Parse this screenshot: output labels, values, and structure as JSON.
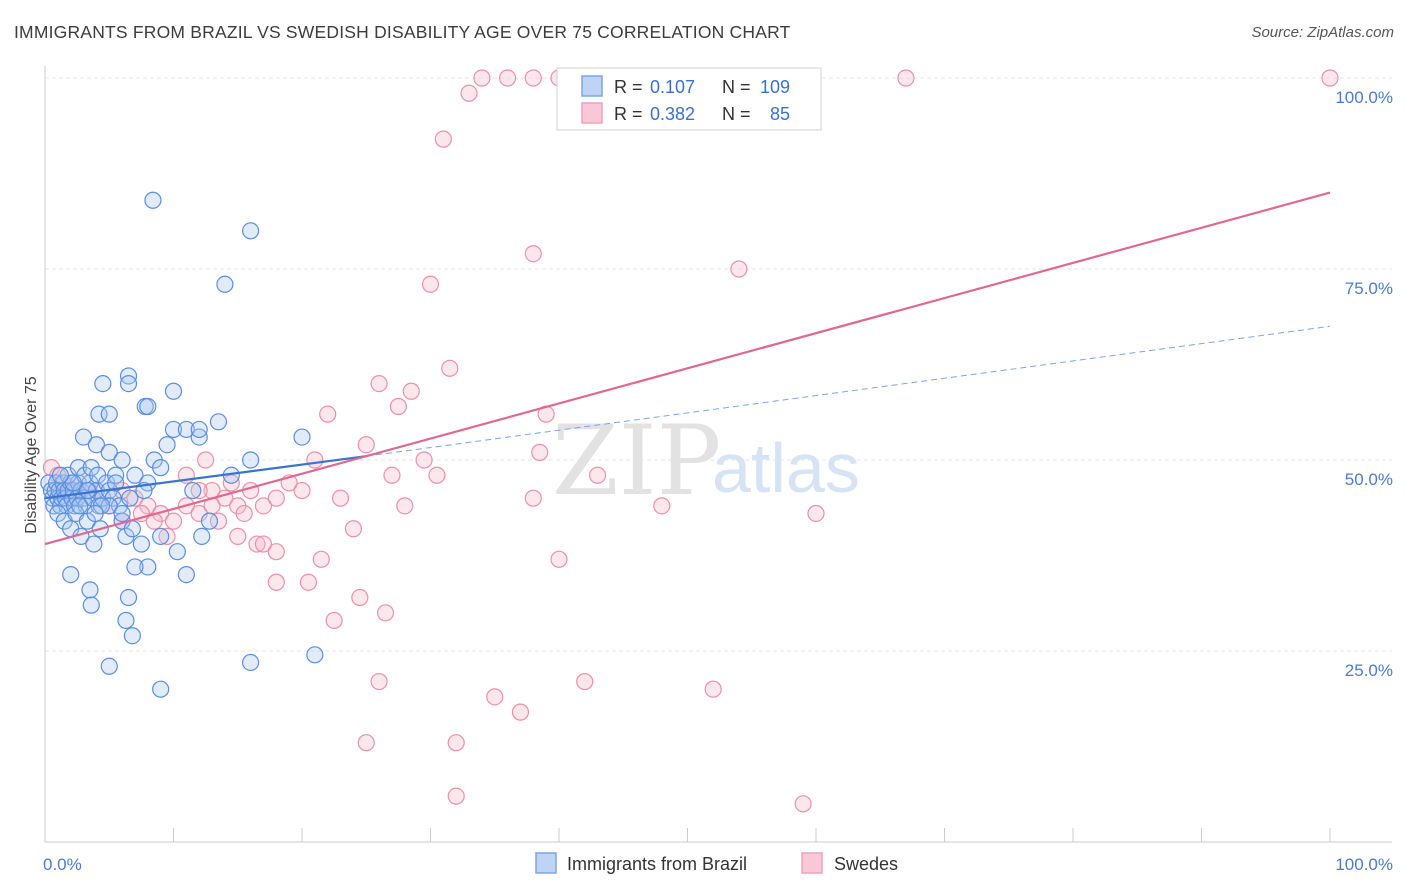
{
  "title": "IMMIGRANTS FROM BRAZIL VS SWEDISH DISABILITY AGE OVER 75 CORRELATION CHART",
  "source": "Source: ZipAtlas.com",
  "watermark": {
    "zip": "ZIP",
    "atlas": "atlas"
  },
  "legend": {
    "rows": [
      {
        "r_label": "R =",
        "r_value": "0.107",
        "n_label": "N =",
        "n_value": "109",
        "color": "#6f9fe3"
      },
      {
        "r_label": "R =",
        "r_value": "0.382",
        "n_label": "N =",
        "n_value": "85",
        "color": "#ec8fab"
      }
    ]
  },
  "bottom_legend": [
    {
      "label": "Immigrants from Brazil",
      "color": "#6f9fe3"
    },
    {
      "label": "Swedes",
      "color": "#ec8fab"
    }
  ],
  "chart_data": {
    "type": "scatter",
    "xlabel": "",
    "ylabel": "Disability Age Over 75",
    "xlim": [
      0,
      100
    ],
    "ylim": [
      0,
      100
    ],
    "x_tick_labels": [
      "0.0%",
      "100.0%"
    ],
    "y_tick_labels": [
      {
        "value": 25,
        "label": "25.0%"
      },
      {
        "value": 50,
        "label": "50.0%"
      },
      {
        "value": 75,
        "label": "75.0%"
      },
      {
        "value": 100,
        "label": "100.0%"
      }
    ],
    "series": [
      {
        "name": "Immigrants from Brazil",
        "color": "#6f9fe3",
        "trend": {
          "x0": 0,
          "y0": 45,
          "x1": 25,
          "y1": 50.5,
          "dash_x1": 100,
          "dash_y1": 67.5
        },
        "points": [
          [
            0.3,
            47
          ],
          [
            0.5,
            46
          ],
          [
            0.6,
            45
          ],
          [
            0.7,
            44
          ],
          [
            0.8,
            46
          ],
          [
            0.9,
            47
          ],
          [
            1.0,
            45
          ],
          [
            1.1,
            46
          ],
          [
            1.2,
            44
          ],
          [
            1.3,
            45
          ],
          [
            1.4,
            47
          ],
          [
            1.5,
            46
          ],
          [
            1.6,
            45
          ],
          [
            1.7,
            44
          ],
          [
            1.8,
            46
          ],
          [
            2.0,
            47
          ],
          [
            2.1,
            45
          ],
          [
            2.2,
            46
          ],
          [
            2.3,
            44
          ],
          [
            2.5,
            45
          ],
          [
            2.6,
            47
          ],
          [
            2.8,
            46
          ],
          [
            3.0,
            45
          ],
          [
            3.2,
            44
          ],
          [
            3.4,
            46
          ],
          [
            3.5,
            47
          ],
          [
            3.7,
            45
          ],
          [
            4.0,
            46
          ],
          [
            4.2,
            44
          ],
          [
            4.5,
            45
          ],
          [
            1.0,
            43
          ],
          [
            1.5,
            42
          ],
          [
            2.0,
            41
          ],
          [
            2.4,
            43
          ],
          [
            2.8,
            40
          ],
          [
            3.3,
            42
          ],
          [
            3.8,
            39
          ],
          [
            4.3,
            41
          ],
          [
            1.8,
            48
          ],
          [
            2.6,
            49
          ],
          [
            3.1,
            48
          ],
          [
            3.6,
            49
          ],
          [
            4.1,
            48
          ],
          [
            4.8,
            47
          ],
          [
            5.0,
            46
          ],
          [
            5.3,
            45
          ],
          [
            5.5,
            48
          ],
          [
            5.8,
            44
          ],
          [
            6.0,
            42
          ],
          [
            6.3,
            40
          ],
          [
            3.0,
            53
          ],
          [
            4.0,
            52
          ],
          [
            5.0,
            51
          ],
          [
            6.0,
            50
          ],
          [
            7.0,
            48
          ],
          [
            8.0,
            47
          ],
          [
            8.5,
            50
          ],
          [
            9.0,
            49
          ],
          [
            9.5,
            52
          ],
          [
            10.0,
            54
          ],
          [
            4.2,
            56
          ],
          [
            5.0,
            56
          ],
          [
            6.5,
            61
          ],
          [
            7.8,
            57
          ],
          [
            10.0,
            59
          ],
          [
            11.0,
            54
          ],
          [
            12.0,
            53
          ],
          [
            13.5,
            55
          ],
          [
            14.5,
            48
          ],
          [
            16.0,
            50
          ],
          [
            5.0,
            44
          ],
          [
            6.0,
            43
          ],
          [
            6.8,
            41
          ],
          [
            7.5,
            39
          ],
          [
            8.0,
            36
          ],
          [
            9.0,
            40
          ],
          [
            10.3,
            38
          ],
          [
            11.5,
            46
          ],
          [
            12.2,
            40
          ],
          [
            12.8,
            42
          ],
          [
            2.0,
            35
          ],
          [
            3.5,
            33
          ],
          [
            3.6,
            31
          ],
          [
            6.5,
            32
          ],
          [
            6.3,
            29
          ],
          [
            6.8,
            27
          ],
          [
            7.0,
            36
          ],
          [
            5.0,
            23
          ],
          [
            9.0,
            20
          ],
          [
            11.0,
            35
          ],
          [
            16.0,
            23.5
          ],
          [
            21.0,
            24.5
          ],
          [
            14.0,
            73
          ],
          [
            16.0,
            80
          ],
          [
            8.4,
            84
          ],
          [
            4.5,
            60
          ],
          [
            6.5,
            60
          ],
          [
            8.0,
            57
          ],
          [
            12.0,
            54
          ],
          [
            20.0,
            53
          ],
          [
            2.2,
            47
          ],
          [
            3.3,
            46
          ],
          [
            4.4,
            44
          ],
          [
            5.5,
            47
          ],
          [
            6.6,
            45
          ],
          [
            7.7,
            46
          ],
          [
            1.2,
            48
          ],
          [
            2.7,
            44
          ],
          [
            3.9,
            43
          ]
        ]
      },
      {
        "name": "Swedes",
        "color": "#ec8fab",
        "trend": {
          "x0": 0,
          "y0": 39,
          "x1": 100,
          "y1": 85
        },
        "points": [
          [
            0.5,
            49
          ],
          [
            1.0,
            48
          ],
          [
            1.5,
            47
          ],
          [
            2.0,
            46
          ],
          [
            3.0,
            45
          ],
          [
            4.0,
            46
          ],
          [
            5.0,
            44
          ],
          [
            6.0,
            46
          ],
          [
            7.0,
            45
          ],
          [
            8.0,
            44
          ],
          [
            9.0,
            43
          ],
          [
            10.0,
            42
          ],
          [
            11.0,
            44
          ],
          [
            12.0,
            43
          ],
          [
            13.0,
            46
          ],
          [
            14.0,
            45
          ],
          [
            15.0,
            44
          ],
          [
            16.0,
            46
          ],
          [
            17.0,
            44
          ],
          [
            18.0,
            45
          ],
          [
            6.0,
            42
          ],
          [
            7.5,
            43
          ],
          [
            8.5,
            42
          ],
          [
            9.5,
            40
          ],
          [
            11.0,
            48
          ],
          [
            12.5,
            50
          ],
          [
            13.5,
            42
          ],
          [
            15.0,
            40
          ],
          [
            16.5,
            39
          ],
          [
            18.0,
            38
          ],
          [
            19.0,
            47
          ],
          [
            20.0,
            46
          ],
          [
            21.0,
            50
          ],
          [
            22.0,
            56
          ],
          [
            23.0,
            45
          ],
          [
            24.0,
            41
          ],
          [
            25.0,
            52
          ],
          [
            26.0,
            60
          ],
          [
            27.0,
            48
          ],
          [
            28.0,
            44
          ],
          [
            20.5,
            34
          ],
          [
            21.5,
            37
          ],
          [
            22.5,
            29
          ],
          [
            24.5,
            32
          ],
          [
            26.5,
            30
          ],
          [
            27.5,
            57
          ],
          [
            28.5,
            59
          ],
          [
            29.5,
            50
          ],
          [
            30.5,
            48
          ],
          [
            31.5,
            62
          ],
          [
            32.0,
            13
          ],
          [
            35.0,
            19
          ],
          [
            37.0,
            17
          ],
          [
            38.0,
            45
          ],
          [
            39.0,
            56
          ],
          [
            40.0,
            37
          ],
          [
            42.0,
            21
          ],
          [
            43.0,
            48
          ],
          [
            48.0,
            44
          ],
          [
            52.0,
            20
          ],
          [
            33.0,
            98
          ],
          [
            34.0,
            100
          ],
          [
            36.0,
            100
          ],
          [
            38.0,
            100
          ],
          [
            40.0,
            100
          ],
          [
            54.0,
            100
          ],
          [
            56.0,
            100
          ],
          [
            67.0,
            100
          ],
          [
            100.0,
            100
          ],
          [
            31.0,
            92
          ],
          [
            30.0,
            73
          ],
          [
            38.0,
            77
          ],
          [
            54.0,
            75
          ],
          [
            38.5,
            51
          ],
          [
            60.0,
            43
          ],
          [
            32.0,
            6
          ],
          [
            59.0,
            5
          ],
          [
            25.0,
            13
          ],
          [
            26.0,
            21
          ],
          [
            18.0,
            34
          ],
          [
            17.0,
            39
          ],
          [
            15.5,
            43
          ],
          [
            14.5,
            47
          ],
          [
            13.0,
            44
          ],
          [
            12.0,
            46
          ]
        ]
      }
    ]
  }
}
